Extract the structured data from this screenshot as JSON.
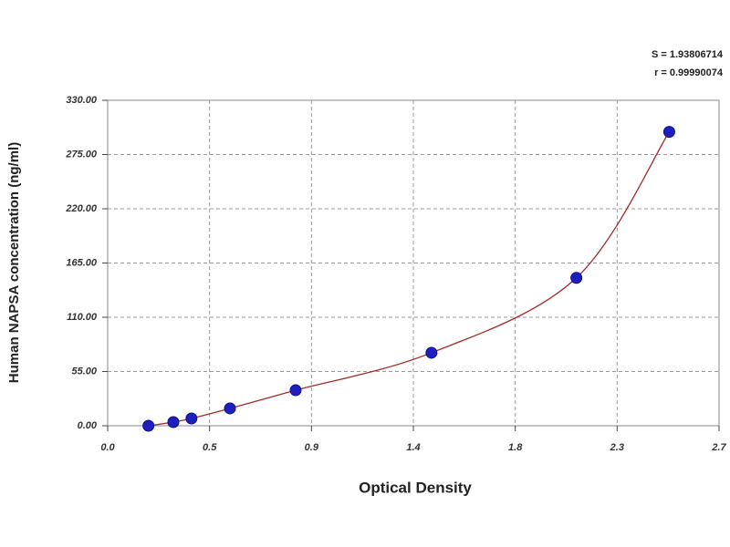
{
  "chart_data": {
    "type": "scatter",
    "xlabel": "Optical Density",
    "ylabel": "Human NAPSA concentration (ng/ml)",
    "annotations": [
      "S = 1.93806714",
      "r = 0.99990074"
    ],
    "series": [
      {
        "color": "#1f1fbf",
        "line_color": "#a52a2a",
        "x": [
          0.18,
          0.29,
          0.37,
          0.54,
          0.83,
          1.43,
          2.07,
          2.48
        ],
        "values": [
          0,
          3.7,
          7.4,
          17.6,
          36,
          74,
          150,
          298
        ]
      }
    ],
    "xlim": [
      0,
      2.7
    ],
    "xticks": [
      {
        "value": 0,
        "label": "0.0"
      },
      {
        "value": 0.45,
        "label": "0.5"
      },
      {
        "value": 0.9,
        "label": "0.9"
      },
      {
        "value": 1.35,
        "label": "1.4"
      },
      {
        "value": 1.8,
        "label": "1.8"
      },
      {
        "value": 2.25,
        "label": "2.3"
      },
      {
        "value": 2.7,
        "label": "2.7"
      }
    ],
    "ylim": [
      0,
      330
    ],
    "yticks": [
      {
        "value": 0,
        "label": "0.00"
      },
      {
        "value": 55,
        "label": "55.00"
      },
      {
        "value": 110,
        "label": "110.00"
      },
      {
        "value": 165,
        "label": "165.00"
      },
      {
        "value": 220,
        "label": "220.00"
      },
      {
        "value": 275,
        "label": "275.00"
      },
      {
        "value": 330,
        "label": "330.00"
      }
    ],
    "grid": true
  }
}
